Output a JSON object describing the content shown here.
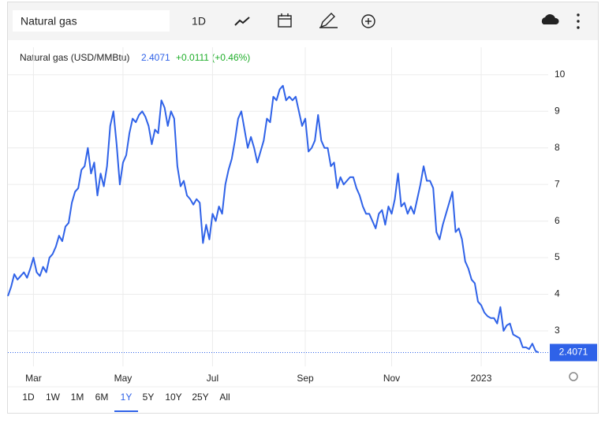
{
  "toolbar": {
    "search": "Natural gas",
    "interval": "1D"
  },
  "chart_data": {
    "type": "line",
    "title": "Natural gas (USD/MMBtu)",
    "last_value": 2.4071,
    "change": "+0.0111 (+0.46%)",
    "categories": [
      null,
      null,
      null,
      null,
      null,
      null,
      null,
      null,
      "Mar",
      null,
      null,
      null,
      null,
      null,
      null,
      null,
      null,
      null,
      null,
      null,
      null,
      null,
      null,
      null,
      null,
      null,
      null,
      null,
      null,
      null,
      null,
      null,
      null,
      null,
      null,
      null,
      "May",
      null,
      null,
      null,
      null,
      null,
      null,
      null,
      null,
      null,
      null,
      null,
      null,
      null,
      null,
      null,
      null,
      null,
      null,
      null,
      null,
      null,
      null,
      null,
      null,
      null,
      null,
      null,
      "Jul",
      null,
      null,
      null,
      null,
      null,
      null,
      null,
      null,
      null,
      null,
      null,
      null,
      null,
      null,
      null,
      null,
      null,
      null,
      null,
      null,
      null,
      null,
      null,
      null,
      null,
      null,
      null,
      null,
      "Sep",
      null,
      null,
      null,
      null,
      null,
      null,
      null,
      null,
      null,
      null,
      null,
      null,
      null,
      null,
      null,
      null,
      null,
      null,
      null,
      null,
      null,
      null,
      null,
      null,
      null,
      null,
      "Nov",
      null,
      null,
      null,
      null,
      null,
      null,
      null,
      null,
      null,
      null,
      null,
      null,
      null,
      null,
      null,
      null,
      null,
      null,
      null,
      null,
      null,
      null,
      null,
      null,
      null,
      null,
      null,
      "2023",
      null,
      null,
      null,
      null,
      null,
      null,
      null,
      null,
      null,
      null,
      null,
      null,
      null,
      null,
      null,
      null,
      null,
      null
    ],
    "values": [
      3.95,
      4.2,
      4.55,
      4.4,
      4.5,
      4.6,
      4.45,
      4.7,
      5.0,
      4.6,
      4.5,
      4.75,
      4.6,
      5.0,
      5.1,
      5.3,
      5.6,
      5.45,
      5.85,
      5.95,
      6.5,
      6.8,
      6.9,
      7.4,
      7.5,
      8.0,
      7.3,
      7.6,
      6.7,
      7.3,
      6.95,
      7.5,
      8.6,
      9.0,
      8.1,
      7.0,
      7.6,
      7.8,
      8.4,
      8.8,
      8.7,
      8.9,
      9.0,
      8.85,
      8.6,
      8.1,
      8.5,
      8.4,
      9.3,
      9.1,
      8.6,
      9.0,
      8.8,
      7.5,
      6.95,
      7.1,
      6.7,
      6.6,
      6.45,
      6.6,
      6.5,
      5.4,
      5.9,
      5.5,
      6.2,
      6.0,
      6.4,
      6.2,
      7.0,
      7.4,
      7.7,
      8.2,
      8.8,
      9.0,
      8.5,
      8.0,
      8.3,
      8.0,
      7.6,
      7.9,
      8.2,
      8.8,
      8.7,
      9.4,
      9.3,
      9.6,
      9.7,
      9.3,
      9.4,
      9.3,
      9.4,
      9.0,
      8.6,
      8.8,
      7.9,
      8.0,
      8.2,
      8.9,
      8.2,
      8.0,
      8.0,
      7.5,
      7.6,
      6.9,
      7.2,
      7.0,
      7.1,
      7.2,
      7.2,
      6.9,
      6.7,
      6.4,
      6.2,
      6.2,
      6.0,
      5.8,
      6.2,
      6.3,
      5.9,
      6.4,
      6.2,
      6.6,
      7.3,
      6.4,
      6.5,
      6.2,
      6.4,
      6.2,
      6.6,
      7.0,
      7.5,
      7.1,
      7.1,
      6.9,
      5.7,
      5.5,
      5.9,
      6.2,
      6.5,
      6.8,
      5.7,
      5.8,
      5.5,
      4.9,
      4.7,
      4.4,
      4.3,
      3.8,
      3.7,
      3.5,
      3.4,
      3.35,
      3.35,
      3.2,
      3.65,
      3.0,
      3.15,
      3.2,
      2.9,
      2.85,
      2.8,
      2.55,
      2.55,
      2.5,
      2.65,
      2.45,
      2.4071
    ],
    "color": "#2f62e8",
    "ylim": [
      2.03,
      10.75
    ],
    "yticks": [
      3,
      4,
      5,
      6,
      7,
      8,
      9,
      10
    ],
    "grid": true
  },
  "ranges": [
    "1D",
    "1W",
    "1M",
    "6M",
    "1Y",
    "5Y",
    "10Y",
    "25Y",
    "All"
  ],
  "selected_range": "1Y"
}
